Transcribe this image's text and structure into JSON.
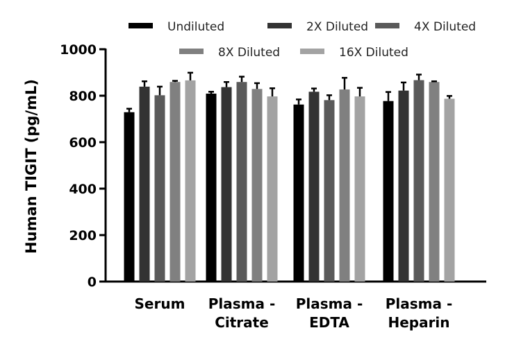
{
  "chart_data": {
    "type": "bar",
    "title": "",
    "xlabel": "",
    "ylabel": "Human TIGIT (pg/mL)",
    "ylim": [
      0,
      1000
    ],
    "yticks": [
      0,
      200,
      400,
      600,
      800,
      1000
    ],
    "grid": false,
    "legend_position": "top",
    "categories": [
      "Serum",
      "Plasma - Citrate",
      "Plasma - EDTA",
      "Plasma - Heparin"
    ],
    "category_lines": [
      [
        "Serum"
      ],
      [
        "Plasma -",
        "Citrate"
      ],
      [
        "Plasma -",
        "EDTA"
      ],
      [
        "Plasma -",
        "Heparin"
      ]
    ],
    "series": [
      {
        "name": "Undiluted",
        "color": "#000000",
        "values": [
          729,
          809,
          762,
          777
        ],
        "errors": [
          15,
          8,
          22,
          39
        ]
      },
      {
        "name": "2X Diluted",
        "color": "#333333",
        "values": [
          839,
          837,
          817,
          822
        ],
        "errors": [
          23,
          22,
          14,
          35
        ]
      },
      {
        "name": "4X Diluted",
        "color": "#5a5a5a",
        "values": [
          802,
          859,
          781,
          867
        ],
        "errors": [
          37,
          23,
          21,
          24
        ]
      },
      {
        "name": "8X Diluted",
        "color": "#808080",
        "values": [
          859,
          829,
          827,
          859
        ],
        "errors": [
          5,
          25,
          50,
          3
        ]
      },
      {
        "name": "16X Diluted",
        "color": "#a3a3a3",
        "values": [
          866,
          797,
          797,
          787
        ],
        "errors": [
          33,
          35,
          37,
          12
        ]
      }
    ]
  }
}
